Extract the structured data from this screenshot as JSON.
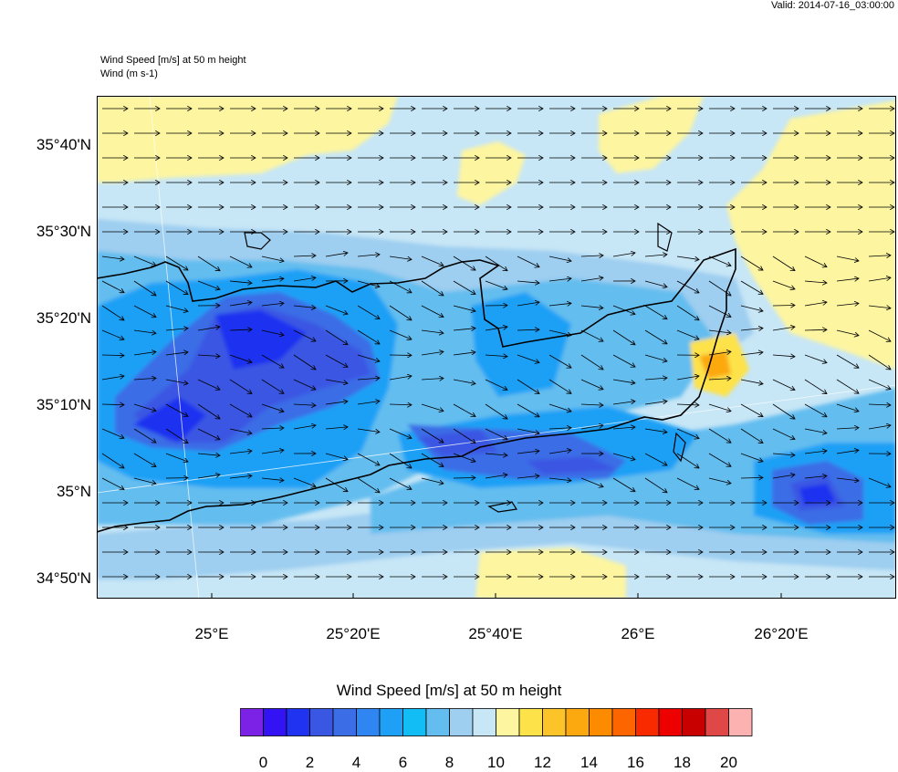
{
  "header": {
    "valid": "Valid: 2014-07-16_03:00:00",
    "title_line1": "Wind Speed [m/s] at 50 m height",
    "title_line2": "Wind   (m s-1)"
  },
  "axes": {
    "lat_labels": [
      "35°40'N",
      "35°30'N",
      "35°20'N",
      "35°10'N",
      "35°N",
      "34°50'N"
    ],
    "lon_labels": [
      "25°E",
      "25°20'E",
      "25°40'E",
      "26°E",
      "26°20'E"
    ]
  },
  "colorbar": {
    "title": "Wind Speed [m/s] at 50 m height",
    "labels": [
      "0",
      "2",
      "4",
      "6",
      "8",
      "10",
      "12",
      "14",
      "16",
      "18",
      "20"
    ],
    "colors": [
      "#7b22e6",
      "#3312f3",
      "#1f33f0",
      "#3a57e3",
      "#3b6de6",
      "#2f86f3",
      "#1ea0f6",
      "#12bcf4",
      "#64bdef",
      "#9ecef0",
      "#c7e6f6",
      "#fdf5a0",
      "#fde24a",
      "#fdc42a",
      "#fca90f",
      "#fc8b00",
      "#fc6500",
      "#fa2a00",
      "#ef0000",
      "#c90000",
      "#e04848",
      "#fdb2b2"
    ]
  },
  "map": {
    "background": "#c7e6f6",
    "colors": {
      "weak": "#fdf5a0",
      "weak2": "#fde24a",
      "mid": "#9ecef0",
      "mid2": "#64bdef",
      "strong": "#1ea0f6",
      "strong2": "#2f86f3",
      "stronger": "#3b6de6",
      "strongest": "#3a57e3",
      "core": "#1f33f0",
      "orange": "#fca90f"
    }
  }
}
